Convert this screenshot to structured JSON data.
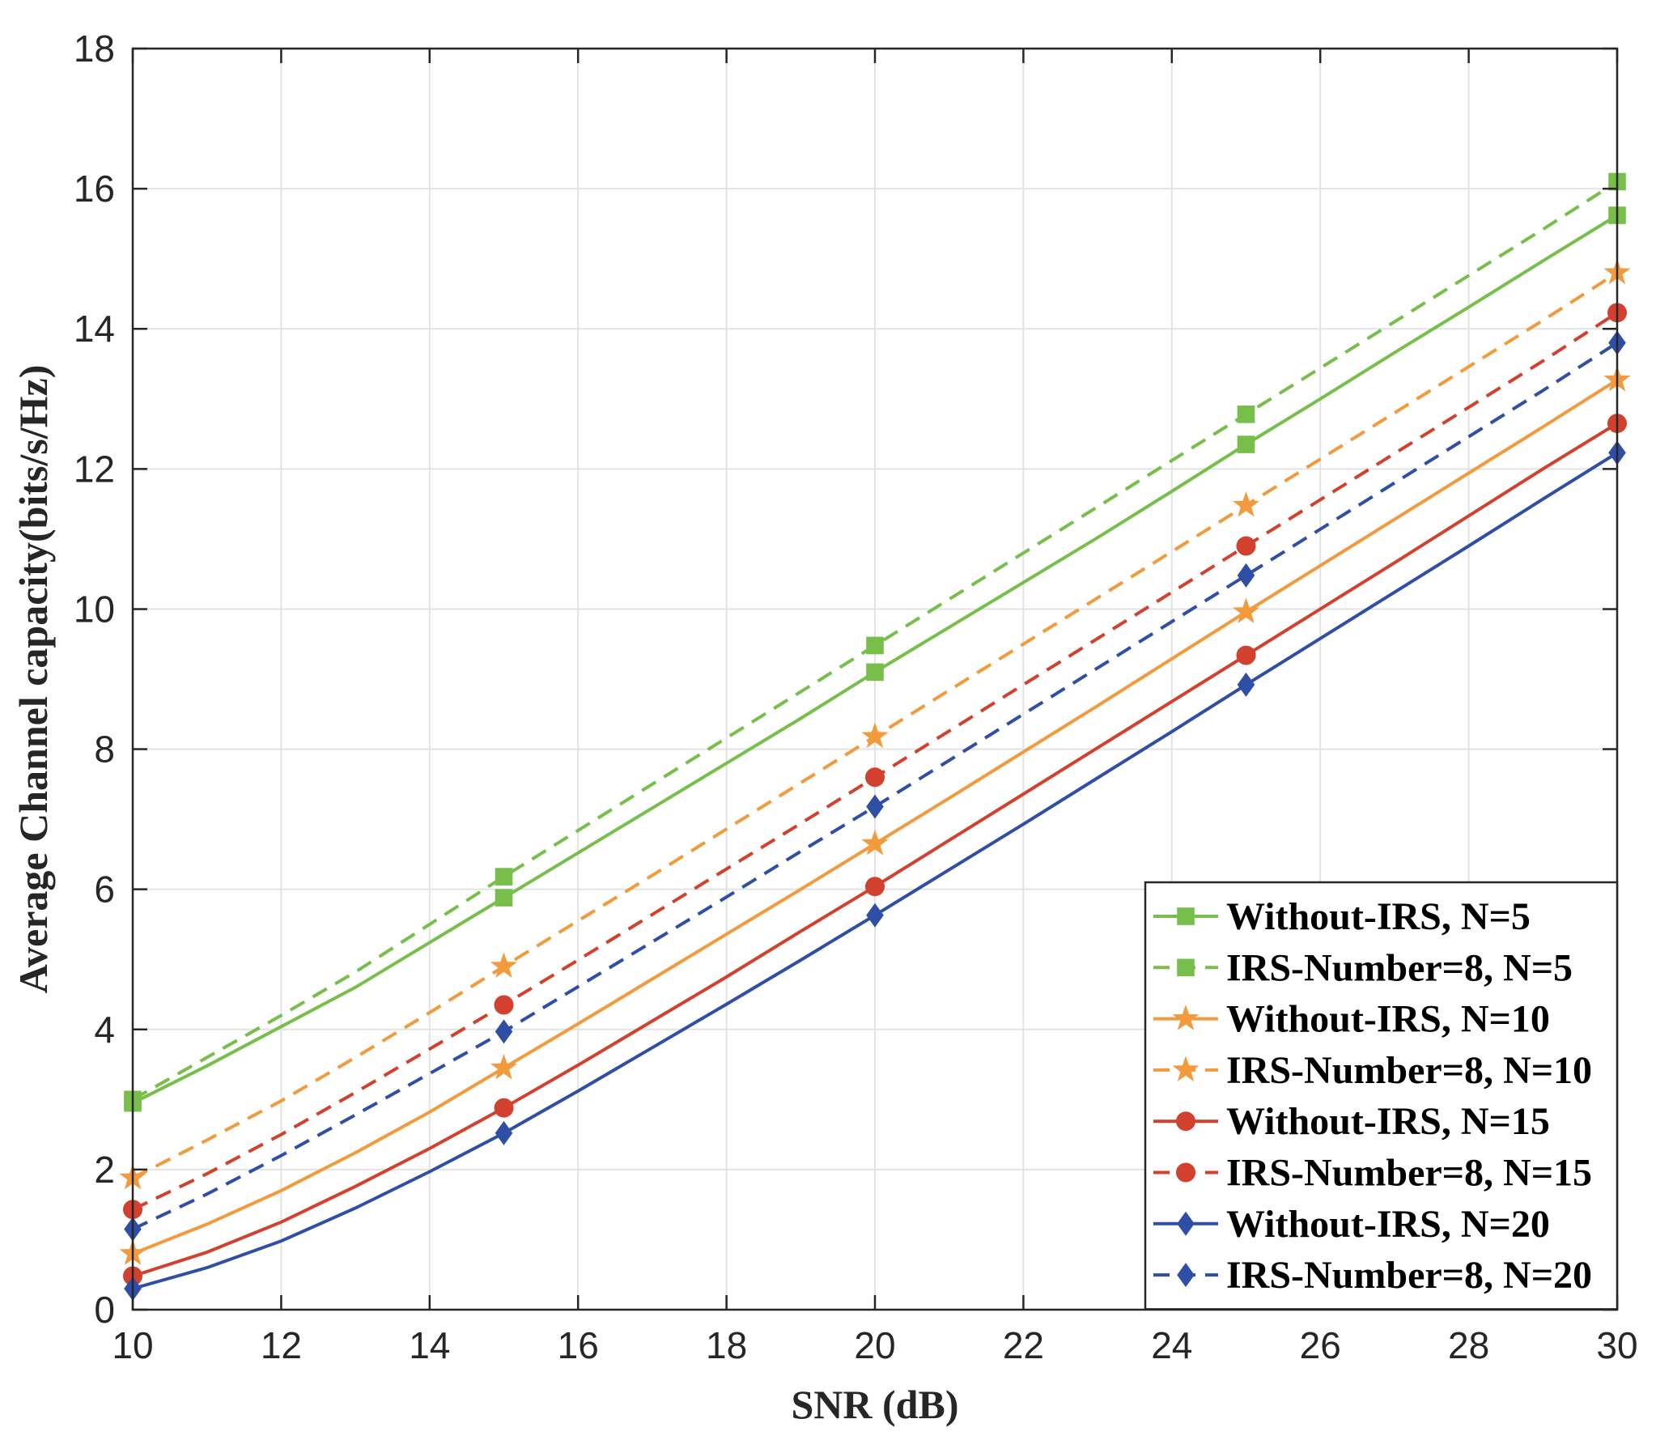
{
  "chart_data": {
    "type": "line",
    "title": "",
    "xlabel": "SNR (dB)",
    "ylabel": "Average Channel capacity(bits/s/Hz)",
    "xlim": [
      10,
      30
    ],
    "ylim": [
      0,
      18
    ],
    "xticks": [
      10,
      12,
      14,
      16,
      18,
      20,
      22,
      24,
      26,
      28,
      30
    ],
    "yticks": [
      0,
      2,
      4,
      6,
      8,
      10,
      12,
      14,
      16,
      18
    ],
    "grid": true,
    "legend_position": "bottom-right",
    "x": [
      10,
      11,
      12,
      13,
      14,
      15,
      16,
      17,
      18,
      19,
      20,
      21,
      22,
      23,
      24,
      25,
      26,
      27,
      28,
      29,
      30
    ],
    "marker_x": [
      10,
      15,
      20,
      25,
      30
    ],
    "series": [
      {
        "name": "Without-IRS, N=5",
        "color": "#77bf4a",
        "dash": "solid",
        "marker": "square",
        "values": [
          2.95,
          3.48,
          4.04,
          4.6,
          5.24,
          5.88,
          6.52,
          7.16,
          7.8,
          8.44,
          9.1,
          9.74,
          10.38,
          11.02,
          11.68,
          12.35,
          13.0,
          13.66,
          14.31,
          14.97,
          15.62
        ]
      },
      {
        "name": "IRS-Number=8, N=5",
        "color": "#77bf4a",
        "dash": "dashed",
        "marker": "square",
        "values": [
          3.0,
          3.6,
          4.2,
          4.82,
          5.5,
          6.18,
          6.84,
          7.5,
          8.16,
          8.82,
          9.48,
          10.14,
          10.8,
          11.46,
          12.12,
          12.78,
          13.44,
          14.1,
          14.76,
          15.42,
          16.1
        ]
      },
      {
        "name": "Without-IRS, N=10",
        "color": "#f29a3c",
        "dash": "solid",
        "marker": "star",
        "values": [
          0.8,
          1.22,
          1.7,
          2.24,
          2.82,
          3.45,
          4.08,
          4.72,
          5.36,
          6.0,
          6.65,
          7.3,
          7.96,
          8.62,
          9.29,
          9.96,
          10.62,
          11.28,
          11.94,
          12.6,
          13.27
        ]
      },
      {
        "name": "IRS-Number=8, N=10",
        "color": "#f29a3c",
        "dash": "dashed",
        "marker": "star",
        "values": [
          1.88,
          2.42,
          2.98,
          3.6,
          4.24,
          4.9,
          5.55,
          6.2,
          6.86,
          7.52,
          8.18,
          8.84,
          9.5,
          10.16,
          10.82,
          11.48,
          12.14,
          12.8,
          13.46,
          14.12,
          14.8
        ]
      },
      {
        "name": "Without-IRS, N=15",
        "color": "#d2412e",
        "dash": "solid",
        "marker": "circle",
        "values": [
          0.48,
          0.82,
          1.25,
          1.76,
          2.3,
          2.88,
          3.49,
          4.12,
          4.75,
          5.4,
          6.04,
          6.7,
          7.36,
          8.02,
          8.68,
          9.34,
          10.0,
          10.66,
          11.33,
          12.0,
          12.65
        ]
      },
      {
        "name": "IRS-Number=8, N=15",
        "color": "#d2412e",
        "dash": "dashed",
        "marker": "circle",
        "values": [
          1.43,
          1.94,
          2.5,
          3.1,
          3.72,
          4.35,
          4.99,
          5.64,
          6.29,
          6.94,
          7.6,
          8.26,
          8.92,
          9.58,
          10.24,
          10.9,
          11.56,
          12.22,
          12.88,
          13.54,
          14.23
        ]
      },
      {
        "name": "Without-IRS, N=20",
        "color": "#2f4fa6",
        "dash": "solid",
        "marker": "diamond",
        "values": [
          0.3,
          0.6,
          0.98,
          1.45,
          1.97,
          2.52,
          3.12,
          3.74,
          4.36,
          4.99,
          5.63,
          6.28,
          6.93,
          7.59,
          8.25,
          8.92,
          9.58,
          10.24,
          10.9,
          11.57,
          12.23
        ]
      },
      {
        "name": "IRS-Number=8, N=20",
        "color": "#2f4fa6",
        "dash": "dashed",
        "marker": "diamond",
        "values": [
          1.15,
          1.65,
          2.2,
          2.78,
          3.37,
          3.97,
          4.61,
          5.25,
          5.89,
          6.54,
          7.18,
          7.84,
          8.5,
          9.16,
          9.82,
          10.48,
          11.14,
          11.8,
          12.46,
          13.12,
          13.8
        ]
      }
    ]
  }
}
